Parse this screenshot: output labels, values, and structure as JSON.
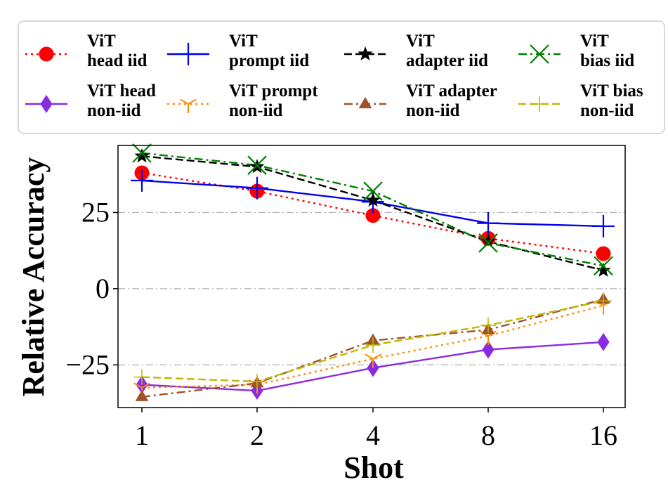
{
  "chart_data": {
    "type": "line",
    "title": "",
    "xlabel": "Shot",
    "ylabel": "Relative Accuracy",
    "categories": [
      "1",
      "2",
      "4",
      "8",
      "16"
    ],
    "yticks": [
      -25,
      0,
      25
    ],
    "yticklabels": [
      "−25",
      "0",
      "25"
    ],
    "ylim": [
      -39,
      47
    ],
    "grid": "horizontal dash-dot at y ticks",
    "legend_position": "top, above plot",
    "series": [
      {
        "name": "ViT head iid",
        "line1": "ViT",
        "line2": "head iid",
        "color": "#ff0000",
        "dash": "dotted",
        "marker": "circle",
        "values": [
          38,
          32,
          24,
          16.5,
          11.5
        ]
      },
      {
        "name": "ViT prompt iid",
        "line1": "ViT",
        "line2": "prompt iid",
        "color": "#0000ee",
        "dash": "solid",
        "marker": "plus",
        "values": [
          35.5,
          33,
          28.5,
          21.5,
          20.5
        ]
      },
      {
        "name": "ViT adapter iid",
        "line1": "ViT",
        "line2": "adapter iid",
        "color": "#000000",
        "dash": "dashed",
        "marker": "star",
        "values": [
          43.5,
          40,
          29,
          15.5,
          6
        ]
      },
      {
        "name": "ViT bias iid",
        "line1": "ViT",
        "line2": "bias iid",
        "color": "#008000",
        "dash": "dashdot",
        "marker": "x",
        "values": [
          44.5,
          40.5,
          32,
          15,
          7.5
        ]
      },
      {
        "name": "ViT head non-iid",
        "line1": "ViT head",
        "line2": "non-iid",
        "color": "#8a2be2",
        "dash": "solid",
        "marker": "diamond",
        "values": [
          -31.5,
          -33.5,
          -26,
          -20,
          -17.5
        ]
      },
      {
        "name": "ViT prompt non-iid",
        "line1": "ViT prompt",
        "line2": "non-iid",
        "color": "#ff8c00",
        "dash": "dotted",
        "marker": "tri",
        "values": [
          -32.5,
          -31.5,
          -23,
          -15.5,
          -5.5
        ]
      },
      {
        "name": "ViT adapter non-iid",
        "line1": "ViT adapter",
        "line2": "non-iid",
        "color": "#a0522d",
        "dash": "dashdot",
        "marker": "triangle",
        "values": [
          -35.5,
          -31,
          -17,
          -13.5,
          -3.5
        ]
      },
      {
        "name": "ViT bias non-iid",
        "line1": "ViT bias",
        "line2": "non-iid",
        "color": "#bdb800",
        "dash": "dashed",
        "marker": "plus-thin",
        "values": [
          -29,
          -30.5,
          -18.5,
          -12,
          -4
        ]
      }
    ]
  }
}
